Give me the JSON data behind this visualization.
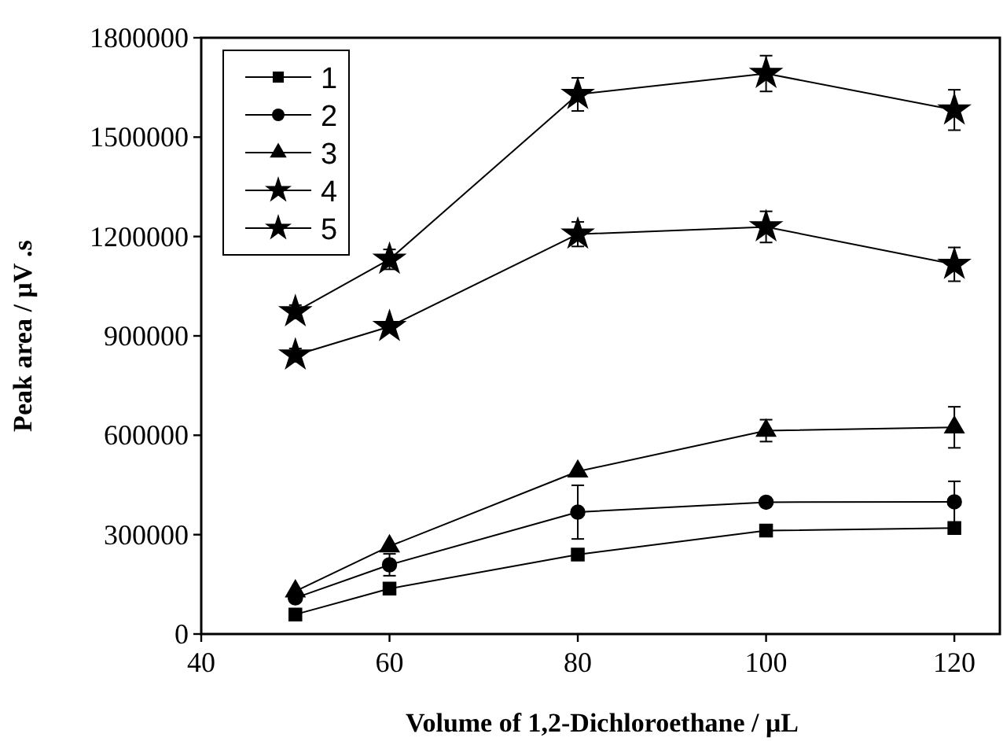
{
  "chart_data": {
    "type": "line",
    "xlabel": "Volume of 1,2-Dichloroethane  /  μL",
    "ylabel": "Peak area / μV .s",
    "x": [
      50,
      60,
      80,
      100,
      120
    ],
    "xlim": [
      40,
      125
    ],
    "xticks": [
      40,
      60,
      80,
      100,
      120
    ],
    "ylim": [
      0,
      1800000
    ],
    "yticks": [
      0,
      300000,
      600000,
      900000,
      1200000,
      1500000,
      1800000
    ],
    "grid": false,
    "legend": "top left",
    "line_style": "solid",
    "series": [
      {
        "name": "1",
        "color": "#000000",
        "marker": "square",
        "values": [
          59000,
          137000,
          240000,
          312000,
          320000
        ]
      },
      {
        "name": "2",
        "color": "#000000",
        "marker": "circle",
        "values": [
          109000,
          209000,
          368000,
          398000,
          399000
        ],
        "errors": [
          null,
          33000,
          81000,
          null,
          62000
        ]
      },
      {
        "name": "3",
        "color": "#000000",
        "marker": "triangle",
        "values": [
          129000,
          265000,
          491000,
          614000,
          624000
        ],
        "errors": [
          null,
          null,
          null,
          33000,
          62000
        ]
      },
      {
        "name": "4",
        "color": "#000000",
        "marker": "star",
        "values": [
          973000,
          1131000,
          1629000,
          1692000,
          1582000
        ],
        "errors": [
          20000,
          30000,
          50000,
          54000,
          61000
        ]
      },
      {
        "name": "5",
        "color": "#000000",
        "marker": "star",
        "values": [
          842000,
          928000,
          1207000,
          1229000,
          1116000
        ],
        "errors": [
          20000,
          10000,
          37000,
          47000,
          51000
        ]
      }
    ]
  }
}
